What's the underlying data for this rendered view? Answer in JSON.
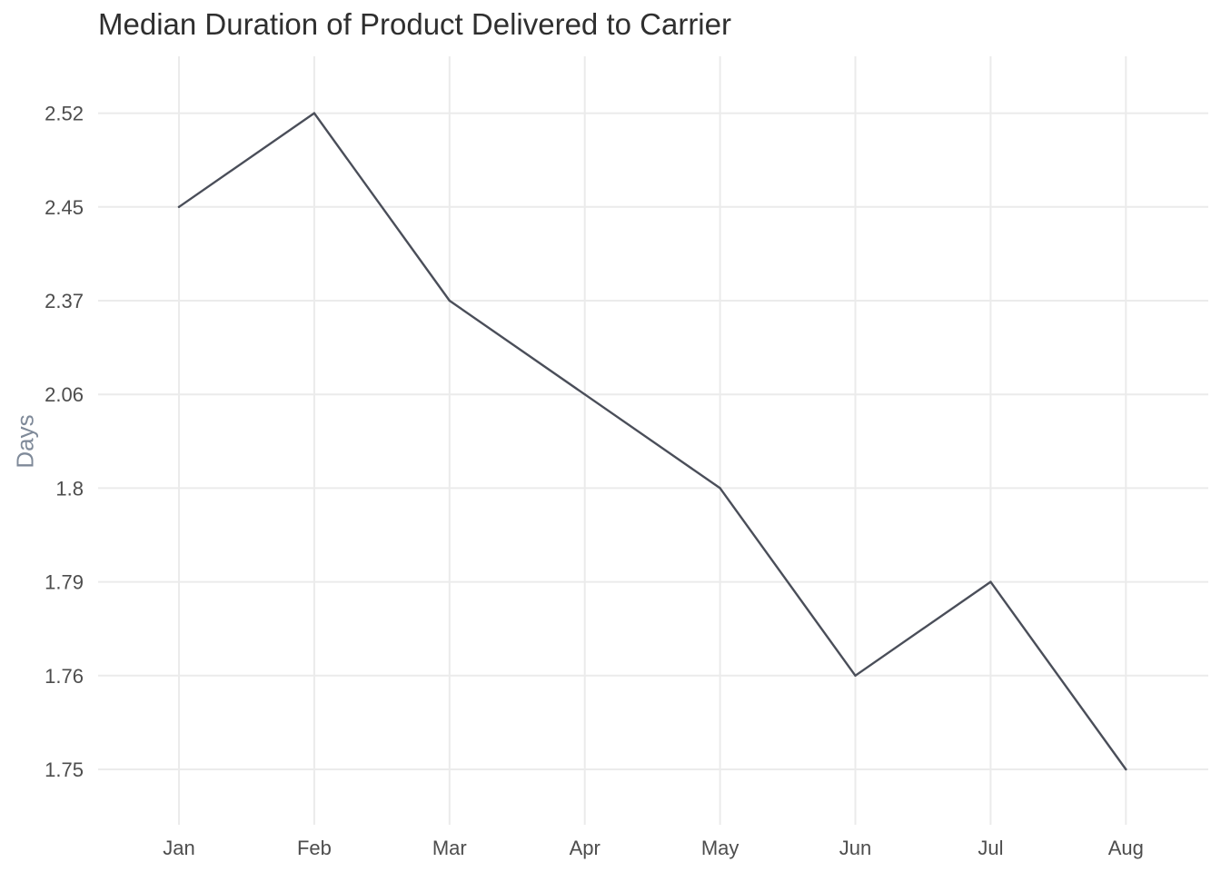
{
  "chart_data": {
    "type": "line",
    "title": "Median Duration of Product Delivered to Carrier",
    "xlabel": "",
    "ylabel": "Days",
    "categories": [
      "Jan",
      "Feb",
      "Mar",
      "Apr",
      "May",
      "Jun",
      "Jul",
      "Aug"
    ],
    "y_axis": {
      "scale": "categorical (evenly spaced, ordered by value)",
      "ticks": [
        "1.75",
        "1.76",
        "1.79",
        "1.8",
        "2.06",
        "2.37",
        "2.45",
        "2.52"
      ]
    },
    "series": [
      {
        "values": [
          2.45,
          2.52,
          2.37,
          2.06,
          1.8,
          1.76,
          1.79,
          1.75
        ],
        "color": "#4a4e59"
      }
    ],
    "grid": true,
    "legend": "none"
  }
}
